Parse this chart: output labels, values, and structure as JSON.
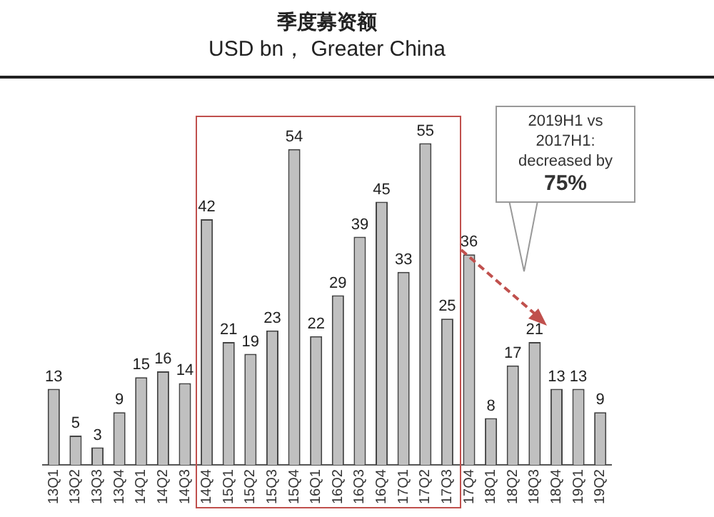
{
  "chart_data": {
    "type": "bar",
    "title": "季度募资额",
    "subtitle": "USD bn， Greater China",
    "categories": [
      "13Q1",
      "13Q2",
      "13Q3",
      "13Q4",
      "14Q1",
      "14Q2",
      "14Q3",
      "14Q4",
      "15Q1",
      "15Q2",
      "15Q3",
      "15Q4",
      "16Q1",
      "16Q2",
      "16Q3",
      "16Q4",
      "17Q1",
      "17Q2",
      "17Q3",
      "17Q4",
      "18Q1",
      "18Q2",
      "18Q3",
      "18Q4",
      "19Q1",
      "19Q2"
    ],
    "values": [
      13,
      5,
      3,
      9,
      15,
      16,
      14,
      42,
      21,
      19,
      23,
      54,
      22,
      29,
      39,
      45,
      33,
      55,
      25,
      36,
      8,
      17,
      21,
      13,
      13,
      9
    ],
    "color": "#c0c0c0",
    "data_labels": true,
    "annotations": [
      "2019H1 vs\n2017H1:\ndecreased by\n75%"
    ],
    "grid": false,
    "legend": false
  }
}
